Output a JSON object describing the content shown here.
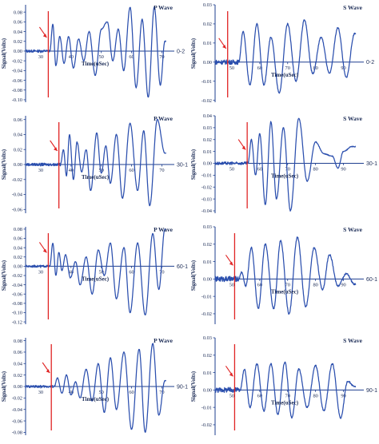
{
  "figure": {
    "ylabel": "Signal(Volts)",
    "xlabel": "Time(uSec)"
  },
  "colors": {
    "waveform": "#2b4fae",
    "axis": "#1e3f8f",
    "pick_line": "#e02424"
  },
  "chart_data": [
    {
      "id": "p-0-2",
      "type": "line",
      "title": "P Wave",
      "legend": "0-2",
      "ylabel": "Signal(Volts)",
      "xlabel": "Time(uSec)",
      "xlim": [
        25,
        72
      ],
      "ylim": [
        -0.105,
        0.095
      ],
      "yticks": [
        0.08,
        0.06,
        0.04,
        0.02,
        0.0,
        -0.02,
        -0.04,
        -0.06,
        -0.08,
        -0.1
      ],
      "xticks": [
        30,
        40,
        50,
        60,
        70
      ],
      "pick_time": 32.5,
      "onset": 33.0,
      "noise": 0.0025,
      "osc": [
        [
          34.0,
          0.055
        ],
        [
          35.0,
          -0.03
        ],
        [
          36.3,
          0.03
        ],
        [
          37.7,
          -0.025
        ],
        [
          39.2,
          0.03
        ],
        [
          40.8,
          -0.035
        ],
        [
          42.5,
          0.025
        ],
        [
          44.2,
          -0.02
        ],
        [
          46.0,
          0.04
        ],
        [
          48.0,
          -0.05
        ],
        [
          50.0,
          0.045
        ],
        [
          52.0,
          0.06
        ],
        [
          53.8,
          -0.02
        ],
        [
          55.6,
          0.045
        ],
        [
          57.4,
          -0.04
        ],
        [
          59.5,
          0.09
        ],
        [
          61.5,
          -0.075
        ],
        [
          63.5,
          0.065
        ],
        [
          65.5,
          -0.095
        ],
        [
          67.5,
          0.09
        ],
        [
          69.5,
          -0.07
        ],
        [
          71.0,
          0.02
        ]
      ]
    },
    {
      "id": "s-0-2",
      "type": "line",
      "title": "S Wave",
      "legend": "0-2",
      "ylabel": "Signal(Volts)",
      "xlabel": "Time(uSec)",
      "xlim": [
        44,
        95
      ],
      "ylim": [
        -0.021,
        0.03
      ],
      "yticks": [
        0.03,
        0.02,
        0.01,
        0.0,
        -0.01,
        -0.02
      ],
      "xticks": [
        50,
        60,
        70,
        80,
        90
      ],
      "pick_time": 48.5,
      "onset": 52.5,
      "noise": 0.0012,
      "osc": [
        [
          54.0,
          0.016
        ],
        [
          56.5,
          -0.012
        ],
        [
          59.0,
          0.02
        ],
        [
          61.5,
          -0.012
        ],
        [
          64.0,
          0.013
        ],
        [
          67.0,
          -0.016
        ],
        [
          70.0,
          0.02
        ],
        [
          73.0,
          -0.01
        ],
        [
          76.0,
          0.022
        ],
        [
          79.0,
          -0.006
        ],
        [
          82.0,
          0.013
        ],
        [
          85.0,
          -0.006
        ],
        [
          88.0,
          0.018
        ],
        [
          91.0,
          -0.008
        ],
        [
          94.0,
          0.015
        ]
      ]
    },
    {
      "id": "p-30-1",
      "type": "line",
      "title": "P Wave",
      "legend": "30-1",
      "ylabel": "Signal(Volts)",
      "xlabel": "Time(uSec)",
      "xlim": [
        25,
        72
      ],
      "ylim": [
        -0.065,
        0.065
      ],
      "yticks": [
        0.06,
        0.04,
        0.02,
        0.0,
        -0.02,
        -0.04,
        -0.06
      ],
      "xticks": [
        30,
        40,
        50,
        60,
        70
      ],
      "pick_time": 36.0,
      "onset": 36.5,
      "noise": 0.0018,
      "osc": [
        [
          37.5,
          0.02
        ],
        [
          38.5,
          -0.015
        ],
        [
          39.5,
          0.04
        ],
        [
          40.8,
          -0.02
        ],
        [
          42.0,
          0.03
        ],
        [
          43.5,
          -0.01
        ],
        [
          45.0,
          0.02
        ],
        [
          46.5,
          -0.035
        ],
        [
          48.5,
          0.042
        ],
        [
          50.0,
          -0.012
        ],
        [
          51.5,
          0.025
        ],
        [
          53.0,
          -0.025
        ],
        [
          55.0,
          0.04
        ],
        [
          57.0,
          -0.045
        ],
        [
          59.5,
          0.055
        ],
        [
          62.0,
          -0.035
        ],
        [
          64.0,
          0.045
        ],
        [
          66.0,
          -0.055
        ],
        [
          68.5,
          0.06
        ],
        [
          71.0,
          0.015
        ]
      ]
    },
    {
      "id": "s-30-1",
      "type": "line",
      "title": "S Wave",
      "legend": "30-1",
      "ylabel": "Signal(Volts)",
      "xlabel": "Time(uSec)",
      "xlim": [
        44,
        95
      ],
      "ylim": [
        -0.042,
        0.04
      ],
      "yticks": [
        0.04,
        0.03,
        0.02,
        0.01,
        0.0,
        -0.01,
        -0.02,
        -0.03,
        -0.04
      ],
      "xticks": [
        50,
        60,
        70,
        80,
        90
      ],
      "pick_time": 55.5,
      "onset": 55.8,
      "noise": 0.0012,
      "osc": [
        [
          57.0,
          0.02
        ],
        [
          58.5,
          -0.01
        ],
        [
          60.0,
          0.025
        ],
        [
          62.0,
          -0.035
        ],
        [
          64.0,
          0.035
        ],
        [
          66.0,
          -0.03
        ],
        [
          68.5,
          0.03
        ],
        [
          71.0,
          -0.04
        ],
        [
          74.0,
          0.038
        ],
        [
          77.0,
          -0.015
        ],
        [
          80.0,
          0.018
        ],
        [
          83.0,
          0.008
        ],
        [
          86.0,
          0.006
        ],
        [
          88.0,
          -0.004
        ],
        [
          90.0,
          0.01
        ],
        [
          93.0,
          0.014
        ]
      ]
    },
    {
      "id": "p-60-1",
      "type": "line",
      "title": "P Wave",
      "legend": "60-1",
      "ylabel": "Signal(Volts)",
      "xlabel": "Time(uSec)",
      "xlim": [
        25,
        72
      ],
      "ylim": [
        -0.125,
        0.085
      ],
      "yticks": [
        0.08,
        0.06,
        0.04,
        0.02,
        0.0,
        -0.02,
        -0.04,
        -0.06,
        -0.08,
        -0.1,
        -0.12
      ],
      "xticks": [
        30,
        40,
        50,
        60,
        70
      ],
      "pick_time": 32.5,
      "onset": 33.0,
      "noise": 0.0022,
      "osc": [
        [
          34.0,
          0.05
        ],
        [
          35.0,
          -0.02
        ],
        [
          36.0,
          0.03
        ],
        [
          37.0,
          -0.01
        ],
        [
          38.2,
          0.025
        ],
        [
          39.8,
          -0.025
        ],
        [
          41.5,
          0.01
        ],
        [
          43.0,
          -0.04
        ],
        [
          45.0,
          0.02
        ],
        [
          47.0,
          -0.06
        ],
        [
          49.0,
          0.035
        ],
        [
          51.0,
          -0.02
        ],
        [
          53.0,
          0.05
        ],
        [
          55.0,
          -0.07
        ],
        [
          57.5,
          0.04
        ],
        [
          59.5,
          -0.1
        ],
        [
          62.0,
          0.05
        ],
        [
          64.5,
          -0.105
        ],
        [
          67.0,
          0.07
        ],
        [
          69.0,
          -0.05
        ],
        [
          71.0,
          0.08
        ]
      ]
    },
    {
      "id": "s-60-1",
      "type": "line",
      "title": "S Wave",
      "legend": "60-1",
      "ylabel": "Signal(Volts)",
      "xlabel": "Time(uSec)",
      "xlim": [
        44,
        95
      ],
      "ylim": [
        -0.026,
        0.03
      ],
      "yticks": [
        0.03,
        0.02,
        0.01,
        0.0,
        -0.01,
        -0.02
      ],
      "xticks": [
        50,
        60,
        70,
        80,
        90
      ],
      "pick_time": 51.0,
      "onset": 52.5,
      "noise": 0.0015,
      "osc": [
        [
          53.5,
          0.004
        ],
        [
          55.0,
          -0.004
        ],
        [
          57.0,
          0.018
        ],
        [
          59.5,
          -0.017
        ],
        [
          62.0,
          0.02
        ],
        [
          65.0,
          -0.017
        ],
        [
          67.5,
          0.022
        ],
        [
          70.5,
          -0.02
        ],
        [
          73.5,
          0.024
        ],
        [
          76.5,
          -0.016
        ],
        [
          79.5,
          0.018
        ],
        [
          82.5,
          -0.006
        ],
        [
          85.0,
          0.014
        ],
        [
          88.0,
          -0.004
        ],
        [
          91.0,
          0.003
        ],
        [
          94.0,
          -0.003
        ]
      ]
    },
    {
      "id": "p-90-1",
      "type": "line",
      "title": "P Wave",
      "legend": "90-1",
      "ylabel": "Signal(Volts)",
      "xlabel": "Time(uSec)",
      "xlim": [
        25,
        72
      ],
      "ylim": [
        -0.085,
        0.085
      ],
      "yticks": [
        0.08,
        0.06,
        0.04,
        0.02,
        0.0,
        -0.02,
        -0.04,
        -0.06,
        -0.08
      ],
      "xticks": [
        30,
        40,
        50,
        60,
        70
      ],
      "pick_time": 33.5,
      "onset": 34.5,
      "noise": 0.002,
      "osc": [
        [
          35.5,
          0.015
        ],
        [
          37.0,
          -0.012
        ],
        [
          38.5,
          0.02
        ],
        [
          40.0,
          -0.015
        ],
        [
          41.5,
          0.008
        ],
        [
          43.0,
          -0.02
        ],
        [
          45.0,
          0.03
        ],
        [
          47.0,
          -0.025
        ],
        [
          49.0,
          0.04
        ],
        [
          51.0,
          -0.045
        ],
        [
          53.0,
          0.05
        ],
        [
          55.0,
          -0.04
        ],
        [
          57.5,
          0.06
        ],
        [
          60.0,
          -0.075
        ],
        [
          62.5,
          0.065
        ],
        [
          64.5,
          -0.08
        ],
        [
          67.0,
          0.075
        ],
        [
          69.0,
          -0.05
        ],
        [
          71.0,
          0.01
        ]
      ]
    },
    {
      "id": "s-90-1",
      "type": "line",
      "title": "S Wave",
      "legend": "90-1",
      "ylabel": "Signal(Volts)",
      "xlabel": "Time(uSec)",
      "xlim": [
        44,
        95
      ],
      "ylim": [
        -0.026,
        0.03
      ],
      "yticks": [
        0.03,
        0.02,
        0.01,
        0.0,
        -0.01,
        -0.02
      ],
      "xticks": [
        50,
        60,
        70,
        80,
        90
      ],
      "pick_time": 51.0,
      "onset": 53.0,
      "noise": 0.0015,
      "osc": [
        [
          54.5,
          0.012
        ],
        [
          56.5,
          -0.01
        ],
        [
          59.0,
          0.015
        ],
        [
          61.5,
          -0.012
        ],
        [
          64.0,
          0.015
        ],
        [
          66.5,
          -0.014
        ],
        [
          69.0,
          0.016
        ],
        [
          71.5,
          -0.016
        ],
        [
          74.0,
          0.012
        ],
        [
          77.0,
          -0.01
        ],
        [
          80.0,
          0.014
        ],
        [
          83.0,
          -0.012
        ],
        [
          86.0,
          0.015
        ],
        [
          89.0,
          -0.016
        ],
        [
          91.5,
          0.005
        ],
        [
          94.0,
          0.002
        ]
      ]
    }
  ]
}
